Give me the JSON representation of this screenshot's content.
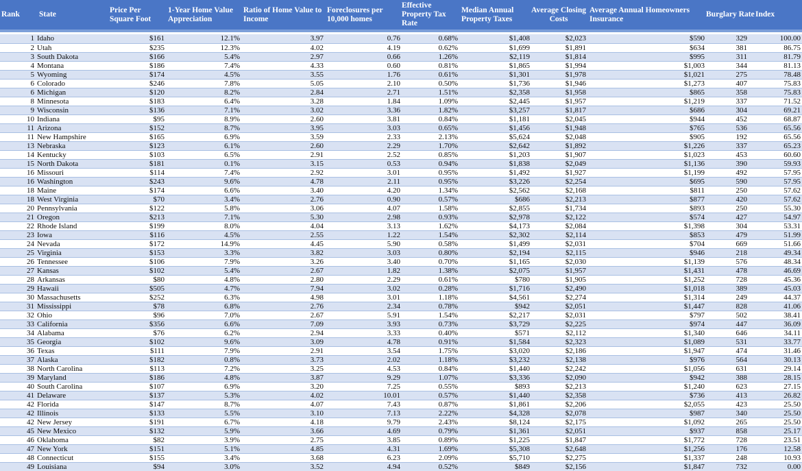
{
  "colors": {
    "header_bg": "#4A76C6",
    "header_strip": "#7C9FD9",
    "row_alt": "#D9E2F3",
    "grid": "#A8BFE3",
    "top_line": "#4E79C7",
    "bottom_line": "#7598D2"
  },
  "table": {
    "columns": [
      {
        "key": "rank",
        "label": "Rank"
      },
      {
        "key": "state",
        "label": "State"
      },
      {
        "key": "price_per_sqft",
        "label": "Price Per Square Foot"
      },
      {
        "key": "home_value_appreciation_1yr",
        "label": "1-Year Home Value Appreciation"
      },
      {
        "key": "ratio_home_value_income",
        "label": "Ratio of Home Value to Income"
      },
      {
        "key": "foreclosures_per_10000",
        "label": "Foreclosures per 10,000 homes"
      },
      {
        "key": "effective_property_tax_rate",
        "label": "Effective Property Tax Rate"
      },
      {
        "key": "median_annual_property_taxes",
        "label": "Median Annual Property Taxes"
      },
      {
        "key": "average_closing_costs",
        "label": "Average Closing Costs"
      },
      {
        "key": "average_annual_homeowners_insurance",
        "label": "Average Annual Homeowners Insurance"
      },
      {
        "key": "burglary_rate",
        "label": "Burglary Rate"
      },
      {
        "key": "index",
        "label": "Index"
      }
    ],
    "rows": [
      [
        "1",
        "Idaho",
        "$161",
        "12.1%",
        "3.97",
        "0.76",
        "0.68%",
        "$1,408",
        "$2,023",
        "$590",
        "329",
        "100.00"
      ],
      [
        "2",
        "Utah",
        "$235",
        "12.3%",
        "4.02",
        "4.19",
        "0.62%",
        "$1,699",
        "$1,891",
        "$634",
        "381",
        "86.75"
      ],
      [
        "3",
        "South Dakota",
        "$166",
        "5.4%",
        "2.97",
        "0.66",
        "1.26%",
        "$2,119",
        "$1,814",
        "$995",
        "311",
        "81.79"
      ],
      [
        "4",
        "Montana",
        "$186",
        "7.4%",
        "4.33",
        "0.60",
        "0.81%",
        "$1,865",
        "$1,994",
        "$1,003",
        "344",
        "81.13"
      ],
      [
        "5",
        "Wyoming",
        "$174",
        "4.5%",
        "3.55",
        "1.76",
        "0.61%",
        "$1,301",
        "$1,978",
        "$1,021",
        "275",
        "78.48"
      ],
      [
        "6",
        "Colorado",
        "$246",
        "7.8%",
        "5.05",
        "2.10",
        "0.50%",
        "$1,736",
        "$1,946",
        "$1,273",
        "407",
        "75.83"
      ],
      [
        "6",
        "Michigan",
        "$120",
        "8.2%",
        "2.84",
        "2.71",
        "1.51%",
        "$2,358",
        "$1,958",
        "$865",
        "358",
        "75.83"
      ],
      [
        "8",
        "Minnesota",
        "$183",
        "6.4%",
        "3.28",
        "1.84",
        "1.09%",
        "$2,445",
        "$1,957",
        "$1,219",
        "337",
        "71.52"
      ],
      [
        "9",
        "Wisconsin",
        "$136",
        "7.1%",
        "3.02",
        "3.36",
        "1.82%",
        "$3,257",
        "$1,817",
        "$686",
        "304",
        "69.21"
      ],
      [
        "10",
        "Indiana",
        "$95",
        "8.9%",
        "2.60",
        "3.81",
        "0.84%",
        "$1,181",
        "$2,045",
        "$944",
        "452",
        "68.87"
      ],
      [
        "11",
        "Arizona",
        "$152",
        "8.7%",
        "3.95",
        "3.03",
        "0.65%",
        "$1,456",
        "$1,948",
        "$765",
        "536",
        "65.56"
      ],
      [
        "11",
        "New Hampshire",
        "$165",
        "6.9%",
        "3.59",
        "2.33",
        "2.13%",
        "$5,624",
        "$2,048",
        "$905",
        "192",
        "65.56"
      ],
      [
        "13",
        "Nebraska",
        "$123",
        "6.1%",
        "2.60",
        "2.29",
        "1.70%",
        "$2,642",
        "$1,892",
        "$1,226",
        "337",
        "65.23"
      ],
      [
        "14",
        "Kentucky",
        "$103",
        "6.5%",
        "2.91",
        "2.52",
        "0.85%",
        "$1,203",
        "$1,907",
        "$1,023",
        "453",
        "60.60"
      ],
      [
        "15",
        "North Dakota",
        "$181",
        "0.1%",
        "3.15",
        "0.53",
        "0.94%",
        "$1,838",
        "$2,049",
        "$1,136",
        "390",
        "59.93"
      ],
      [
        "16",
        "Missouri",
        "$114",
        "7.4%",
        "2.92",
        "3.01",
        "0.95%",
        "$1,492",
        "$1,927",
        "$1,199",
        "492",
        "57.95"
      ],
      [
        "16",
        "Washington",
        "$243",
        "9.6%",
        "4.78",
        "2.11",
        "0.95%",
        "$3,226",
        "$2,254",
        "$695",
        "590",
        "57.95"
      ],
      [
        "18",
        "Maine",
        "$174",
        "6.6%",
        "3.40",
        "4.20",
        "1.34%",
        "$2,562",
        "$2,168",
        "$811",
        "250",
        "57.62"
      ],
      [
        "18",
        "West Virginia",
        "$70",
        "3.4%",
        "2.76",
        "0.90",
        "0.57%",
        "$686",
        "$2,213",
        "$877",
        "420",
        "57.62"
      ],
      [
        "20",
        "Pennsylvania",
        "$122",
        "5.8%",
        "3.06",
        "4.07",
        "1.58%",
        "$2,855",
        "$1,734",
        "$893",
        "250",
        "55.30"
      ],
      [
        "21",
        "Oregon",
        "$213",
        "7.1%",
        "5.30",
        "2.98",
        "0.93%",
        "$2,978",
        "$2,122",
        "$574",
        "427",
        "54.97"
      ],
      [
        "22",
        "Rhode Island",
        "$199",
        "8.0%",
        "4.04",
        "3.13",
        "1.62%",
        "$4,173",
        "$2,084",
        "$1,398",
        "304",
        "53.31"
      ],
      [
        "23",
        "Iowa",
        "$116",
        "4.5%",
        "2.55",
        "1.22",
        "1.54%",
        "$2,302",
        "$2,114",
        "$853",
        "479",
        "51.99"
      ],
      [
        "24",
        "Nevada",
        "$172",
        "14.9%",
        "4.45",
        "5.90",
        "0.58%",
        "$1,499",
        "$2,031",
        "$704",
        "669",
        "51.66"
      ],
      [
        "25",
        "Virginia",
        "$153",
        "3.3%",
        "3.82",
        "3.03",
        "0.80%",
        "$2,194",
        "$2,115",
        "$946",
        "218",
        "49.34"
      ],
      [
        "26",
        "Tennessee",
        "$106",
        "7.9%",
        "3.26",
        "3.40",
        "0.70%",
        "$1,165",
        "$2,030",
        "$1,139",
        "576",
        "48.34"
      ],
      [
        "27",
        "Kansas",
        "$102",
        "5.4%",
        "2.67",
        "1.82",
        "1.38%",
        "$2,075",
        "$1,957",
        "$1,431",
        "478",
        "46.69"
      ],
      [
        "28",
        "Arkansas",
        "$80",
        "4.8%",
        "2.80",
        "2.29",
        "0.61%",
        "$780",
        "$1,905",
        "$1,252",
        "728",
        "45.36"
      ],
      [
        "29",
        "Hawaii",
        "$505",
        "4.7%",
        "7.94",
        "3.02",
        "0.28%",
        "$1,716",
        "$2,490",
        "$1,018",
        "389",
        "45.03"
      ],
      [
        "30",
        "Massachusetts",
        "$252",
        "6.3%",
        "4.98",
        "3.01",
        "1.18%",
        "$4,561",
        "$2,274",
        "$1,314",
        "249",
        "44.37"
      ],
      [
        "31",
        "Mississippi",
        "$78",
        "6.8%",
        "2.76",
        "2.34",
        "0.78%",
        "$942",
        "$2,051",
        "$1,447",
        "828",
        "41.06"
      ],
      [
        "32",
        "Ohio",
        "$96",
        "7.0%",
        "2.67",
        "5.91",
        "1.54%",
        "$2,217",
        "$2,031",
        "$797",
        "502",
        "38.41"
      ],
      [
        "33",
        "California",
        "$356",
        "6.6%",
        "7.09",
        "3.93",
        "0.73%",
        "$3,729",
        "$2,225",
        "$974",
        "447",
        "36.09"
      ],
      [
        "34",
        "Alabama",
        "$76",
        "6.2%",
        "2.94",
        "3.33",
        "0.40%",
        "$571",
        "$2,112",
        "$1,340",
        "646",
        "34.11"
      ],
      [
        "35",
        "Georgia",
        "$102",
        "9.6%",
        "3.09",
        "4.78",
        "0.91%",
        "$1,584",
        "$2,323",
        "$1,089",
        "531",
        "33.77"
      ],
      [
        "36",
        "Texas",
        "$111",
        "7.9%",
        "2.91",
        "3.54",
        "1.75%",
        "$3,020",
        "$2,186",
        "$1,947",
        "474",
        "31.46"
      ],
      [
        "37",
        "Alaska",
        "$182",
        "0.8%",
        "3.73",
        "2.02",
        "1.18%",
        "$3,232",
        "$2,138",
        "$976",
        "564",
        "30.13"
      ],
      [
        "38",
        "North Carolina",
        "$113",
        "7.2%",
        "3.25",
        "4.53",
        "0.84%",
        "$1,440",
        "$2,242",
        "$1,056",
        "631",
        "29.14"
      ],
      [
        "39",
        "Maryland",
        "$186",
        "4.8%",
        "3.87",
        "9.29",
        "1.07%",
        "$3,336",
        "$2,090",
        "$942",
        "388",
        "28.15"
      ],
      [
        "40",
        "South Carolina",
        "$107",
        "6.9%",
        "3.20",
        "7.25",
        "0.55%",
        "$893",
        "$2,213",
        "$1,240",
        "623",
        "27.15"
      ],
      [
        "41",
        "Delaware",
        "$137",
        "5.3%",
        "4.02",
        "10.01",
        "0.57%",
        "$1,440",
        "$2,358",
        "$736",
        "413",
        "26.82"
      ],
      [
        "42",
        "Florida",
        "$147",
        "8.7%",
        "4.07",
        "7.43",
        "0.87%",
        "$1,861",
        "$2,206",
        "$2,055",
        "423",
        "25.50"
      ],
      [
        "42",
        "Illinois",
        "$133",
        "5.5%",
        "3.10",
        "7.13",
        "2.22%",
        "$4,328",
        "$2,078",
        "$987",
        "340",
        "25.50"
      ],
      [
        "42",
        "New Jersey",
        "$191",
        "6.7%",
        "4.18",
        "9.79",
        "2.43%",
        "$8,124",
        "$2,175",
        "$1,092",
        "265",
        "25.50"
      ],
      [
        "45",
        "New Mexico",
        "$132",
        "5.9%",
        "3.66",
        "4.69",
        "0.79%",
        "$1,361",
        "$2,051",
        "$937",
        "858",
        "25.17"
      ],
      [
        "46",
        "Oklahoma",
        "$82",
        "3.9%",
        "2.75",
        "3.85",
        "0.89%",
        "$1,225",
        "$1,847",
        "$1,772",
        "728",
        "23.51"
      ],
      [
        "47",
        "New York",
        "$151",
        "5.1%",
        "4.85",
        "4.31",
        "1.69%",
        "$5,308",
        "$2,648",
        "$1,256",
        "176",
        "12.58"
      ],
      [
        "48",
        "Connecticut",
        "$155",
        "3.4%",
        "3.68",
        "6.23",
        "2.09%",
        "$5,710",
        "$2,275",
        "$1,337",
        "248",
        "10.93"
      ],
      [
        "49",
        "Louisiana",
        "$94",
        "3.0%",
        "3.52",
        "4.94",
        "0.52%",
        "$849",
        "$2,156",
        "$1,847",
        "732",
        "0.00"
      ]
    ]
  }
}
